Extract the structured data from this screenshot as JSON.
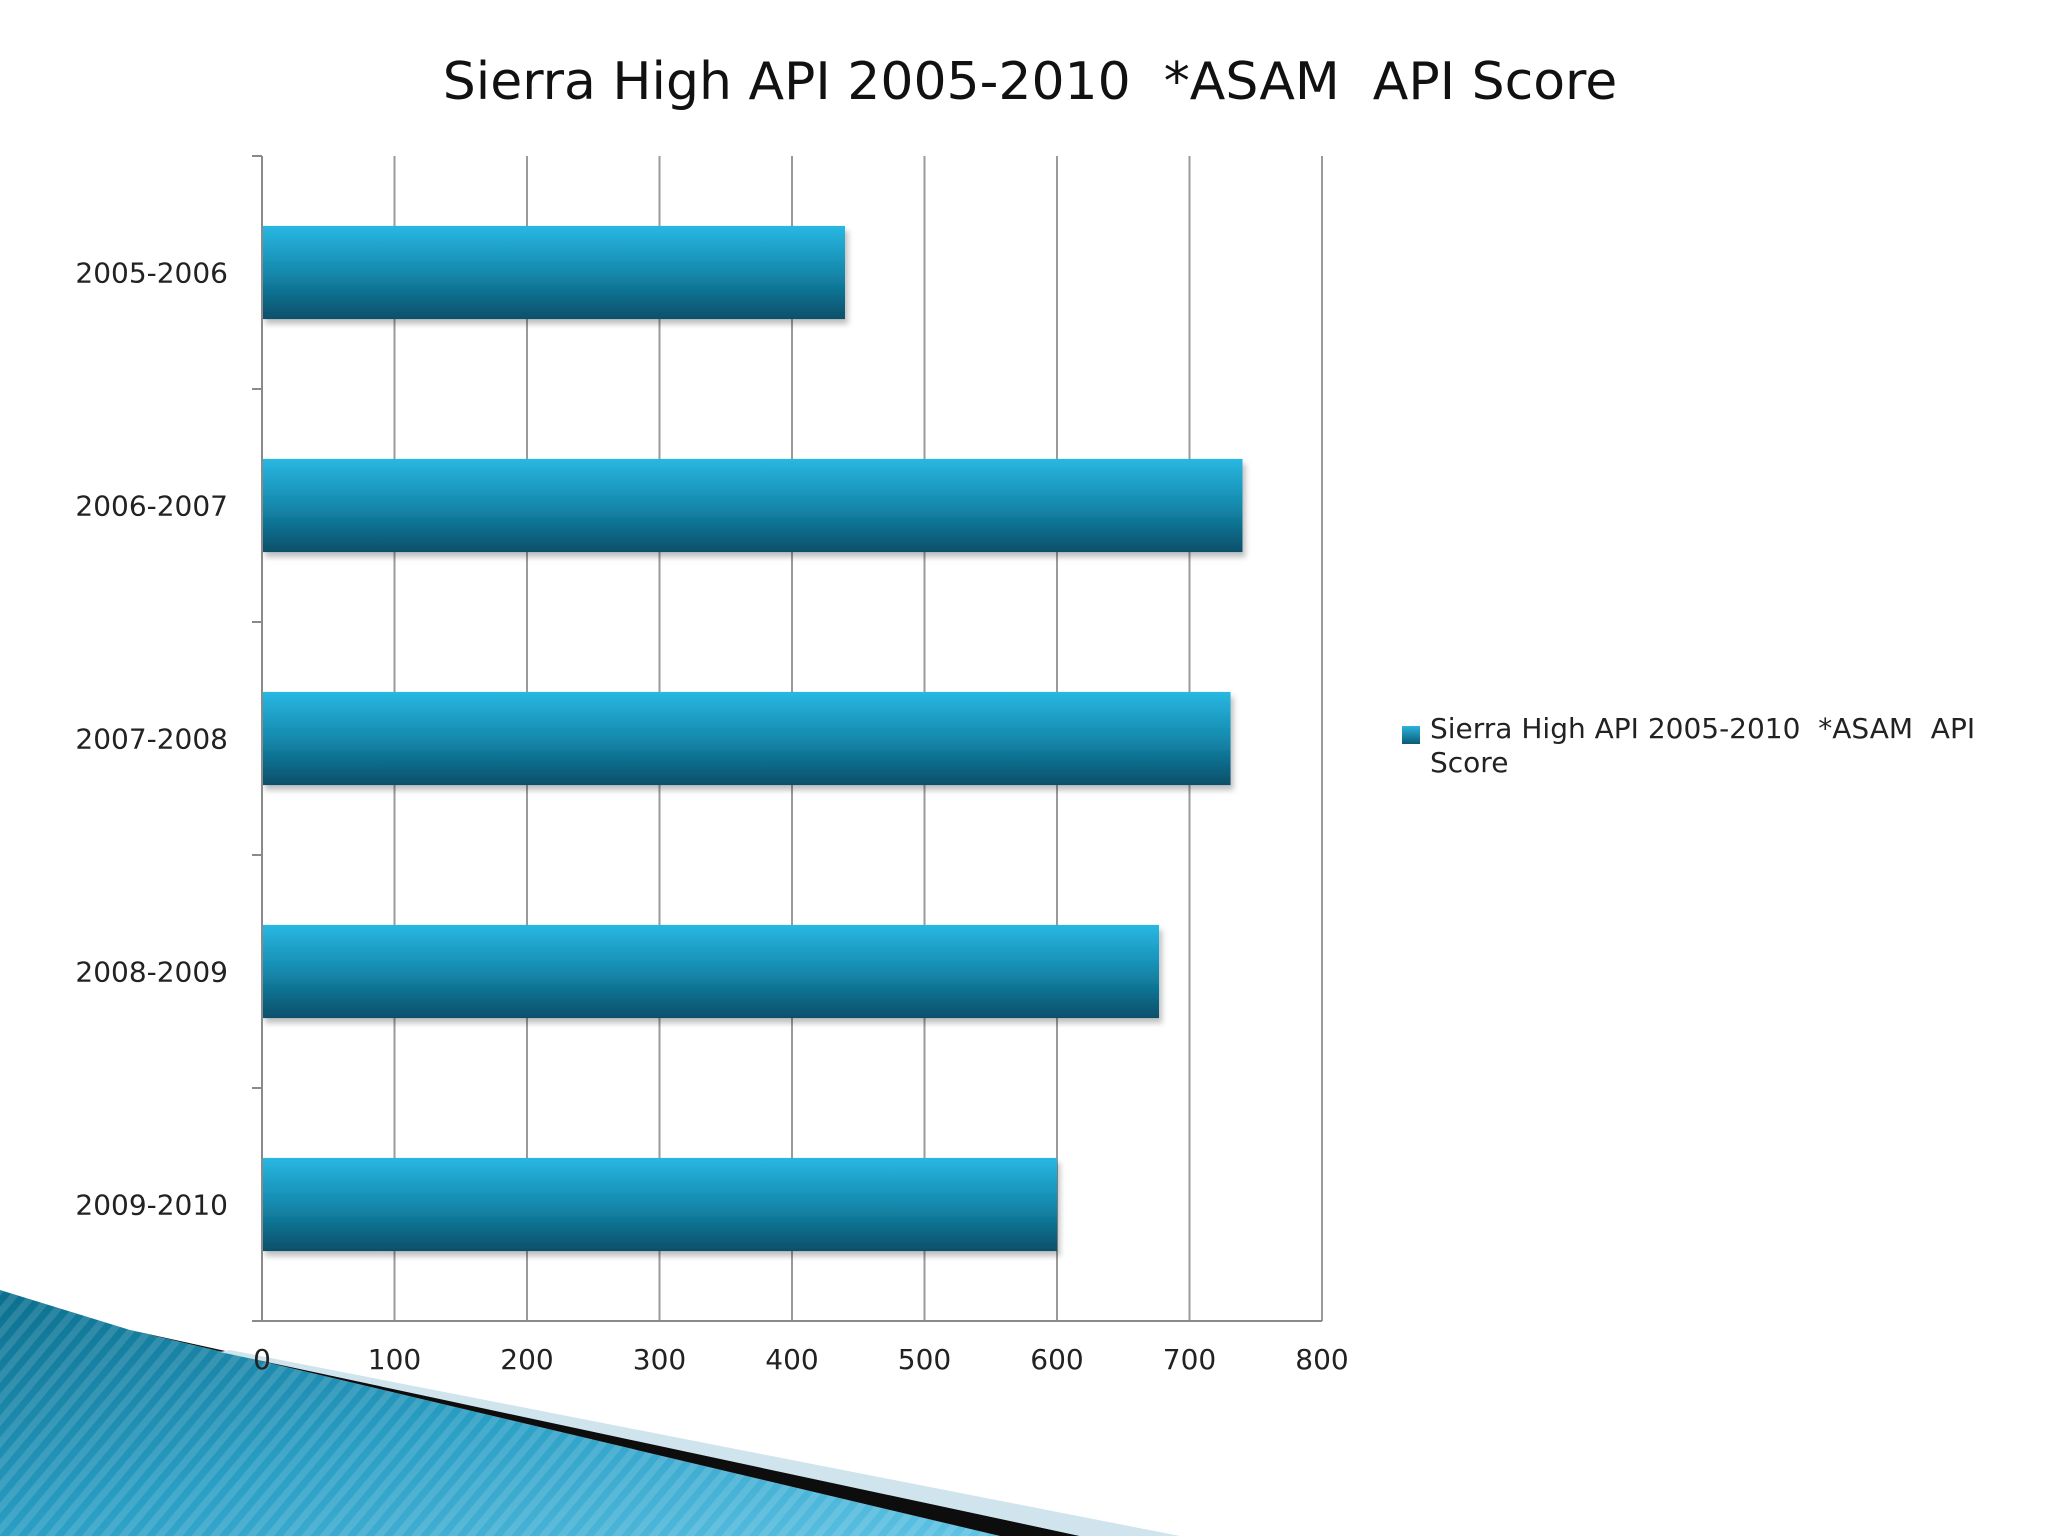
{
  "chart_data": {
    "type": "bar",
    "orientation": "horizontal",
    "title": "Sierra High API 2005-2010  *ASAM  API Score",
    "categories": [
      "2005-2006",
      "2006-2007",
      "2007-2008",
      "2008-2009",
      "2009-2010"
    ],
    "series": [
      {
        "name": "Sierra High API 2005-2010  *ASAM  API Score",
        "values": [
          440,
          740,
          731,
          677,
          600
        ]
      }
    ],
    "xlim": [
      0,
      800
    ],
    "x_ticks": [
      0,
      100,
      200,
      300,
      400,
      500,
      600,
      700,
      800
    ],
    "grid": true,
    "legend_position": "right",
    "bar_color": "#1a9cc4"
  }
}
